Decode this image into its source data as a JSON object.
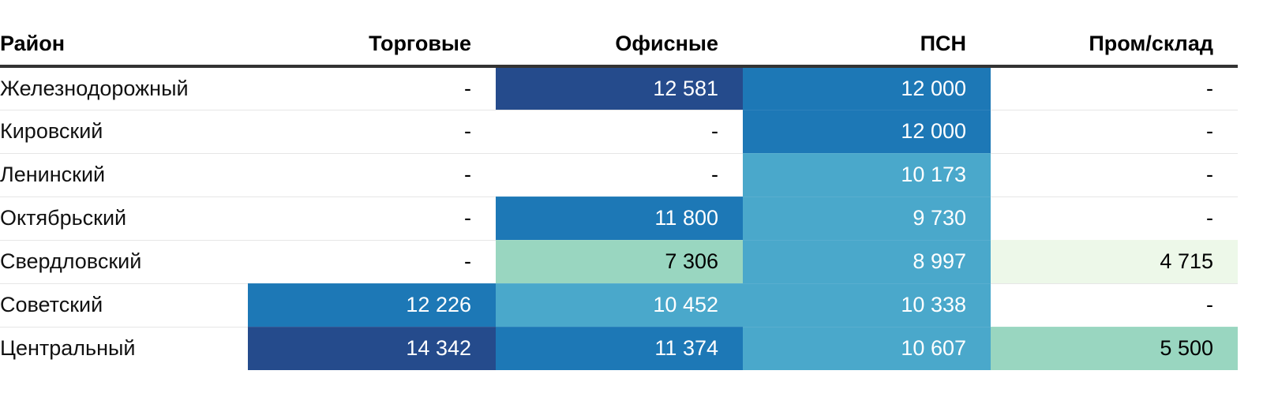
{
  "chart_data": {
    "type": "table",
    "columns": [
      "Район",
      "Торговые",
      "Офисные",
      "ПСН",
      "Пром/склад"
    ],
    "rows": [
      {
        "district": "Железнодорожный",
        "values": [
          "-",
          "12 581",
          "12 000",
          "-"
        ],
        "numeric": [
          null,
          12581,
          12000,
          null
        ]
      },
      {
        "district": "Кировский",
        "values": [
          "-",
          "-",
          "12 000",
          "-"
        ],
        "numeric": [
          null,
          null,
          12000,
          null
        ]
      },
      {
        "district": "Ленинский",
        "values": [
          "-",
          "-",
          "10 173",
          "-"
        ],
        "numeric": [
          null,
          null,
          10173,
          null
        ]
      },
      {
        "district": "Октябрьский",
        "values": [
          "-",
          "11 800",
          "9 730",
          "-"
        ],
        "numeric": [
          null,
          11800,
          9730,
          null
        ]
      },
      {
        "district": "Свердловский",
        "values": [
          "-",
          "7 306",
          "8 997",
          "4 715"
        ],
        "numeric": [
          null,
          7306,
          8997,
          4715
        ]
      },
      {
        "district": "Советский",
        "values": [
          "12 226",
          "10 452",
          "10 338",
          "-"
        ],
        "numeric": [
          12226,
          10452,
          10338,
          null
        ]
      },
      {
        "district": "Центральный",
        "values": [
          "14 342",
          "11 374",
          "10 607",
          "5 500"
        ],
        "numeric": [
          14342,
          11374,
          10607,
          5500
        ]
      }
    ],
    "color_scale": [
      {
        "max": 5000,
        "bg": "#edf8e9",
        "fg": "#000000"
      },
      {
        "max": 8000,
        "bg": "#99d6c0",
        "fg": "#000000"
      },
      {
        "max": 11000,
        "bg": "#4aa8cb",
        "fg": "#ffffff"
      },
      {
        "max": 12500,
        "bg": "#1d78b6",
        "fg": "#ffffff"
      },
      {
        "max": 1000000,
        "bg": "#254b8c",
        "fg": "#ffffff"
      }
    ]
  }
}
